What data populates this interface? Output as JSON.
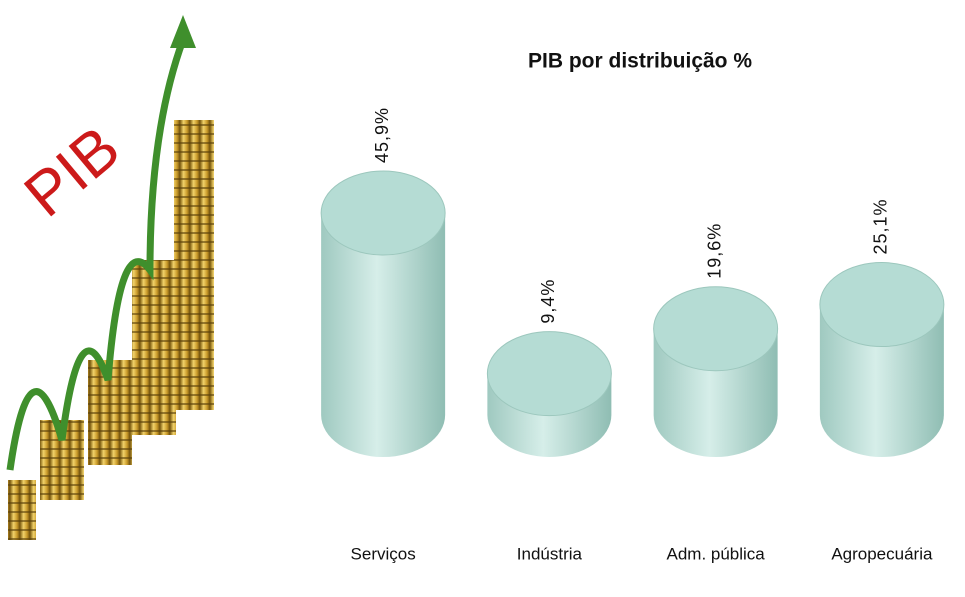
{
  "illustration": {
    "text": "PIB"
  },
  "chart_data": {
    "type": "cylinder",
    "title": "PIB por distribuição %",
    "categories": [
      "Serviços",
      "Indústria",
      "Adm. pública",
      "Agropecuária"
    ],
    "values": [
      45.9,
      9.4,
      19.6,
      25.1
    ],
    "value_labels": [
      "45,9%",
      "9,4%",
      "19,6%",
      "25,1%"
    ],
    "color": "#b5dcd4"
  }
}
